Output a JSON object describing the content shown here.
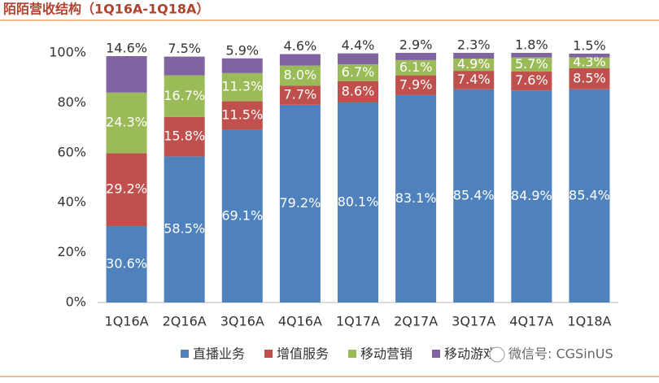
{
  "chart_data": {
    "type": "stacked_bar",
    "title": "陌陌营收结构（1Q16A-1Q18A）",
    "categories": [
      "1Q16A",
      "2Q16A",
      "3Q16A",
      "4Q16A",
      "1Q17A",
      "2Q17A",
      "3Q17A",
      "4Q17A",
      "1Q18A"
    ],
    "series": [
      {
        "name": "直播业务",
        "color": "#4f81bd",
        "values": [
          30.6,
          58.5,
          69.1,
          79.2,
          80.1,
          83.1,
          85.4,
          84.9,
          85.4
        ],
        "value_labels": [
          "30.6%",
          "58.5%",
          "69.1%",
          "79.2%",
          "80.1%",
          "83.1%",
          "85.4%",
          "84.9%",
          "85.4%"
        ]
      },
      {
        "name": "增值服务",
        "color": "#c0504d",
        "values": [
          29.2,
          15.8,
          11.5,
          7.7,
          8.6,
          7.9,
          7.4,
          7.6,
          8.5
        ],
        "value_labels": [
          "29.2%",
          "15.8%",
          "11.5%",
          "7.7%",
          "8.6%",
          "7.9%",
          "7.4%",
          "7.6%",
          "8.5%"
        ]
      },
      {
        "name": "移动营销",
        "color": "#9bbb59",
        "values": [
          24.3,
          16.7,
          11.3,
          8.0,
          6.7,
          6.1,
          4.9,
          5.7,
          4.3
        ],
        "value_labels": [
          "24.3%",
          "16.7%",
          "11.3%",
          "8.0%",
          "6.7%",
          "6.1%",
          "4.9%",
          "5.7%",
          "4.3%"
        ]
      },
      {
        "name": "移动游戏",
        "color": "#8064a2",
        "values": [
          14.6,
          7.5,
          5.9,
          4.6,
          4.4,
          2.9,
          2.3,
          1.8,
          1.5
        ],
        "value_labels": [
          "14.6%",
          "7.5%",
          "5.9%",
          "4.6%",
          "4.4%",
          "2.9%",
          "2.3%",
          "1.8%",
          "1.5%"
        ]
      }
    ],
    "ylim": [
      0,
      100
    ],
    "yticks": [
      {
        "value": 0,
        "label": "0%"
      },
      {
        "value": 20,
        "label": "20%"
      },
      {
        "value": 40,
        "label": "40%"
      },
      {
        "value": 60,
        "label": "60%"
      },
      {
        "value": 80,
        "label": "80%"
      },
      {
        "value": 100,
        "label": "100%"
      }
    ],
    "legend": "bottom",
    "watermark": "微信号: CGSinUS"
  }
}
